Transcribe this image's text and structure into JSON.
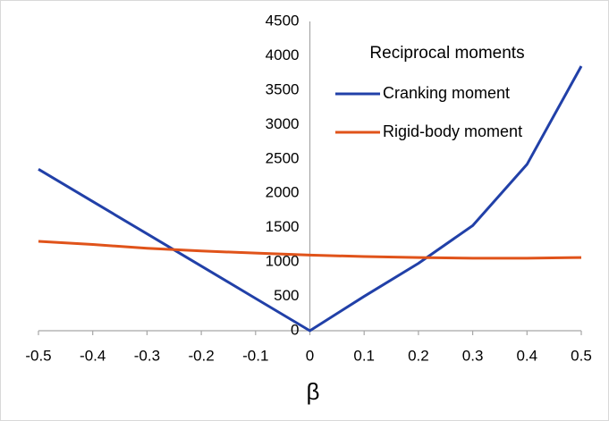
{
  "chart_data": {
    "type": "line",
    "legend_title": "Reciprocal moments",
    "xlabel": "β",
    "x": [
      -0.5,
      -0.4,
      -0.3,
      -0.2,
      -0.1,
      0,
      0.1,
      0.2,
      0.3,
      0.4,
      0.5
    ],
    "series": [
      {
        "name": "Cranking moment",
        "color": "#2140a8",
        "values": [
          2350,
          1880,
          1410,
          940,
          470,
          0,
          500,
          980,
          1530,
          2420,
          3850
        ]
      },
      {
        "name": "Rigid-body moment",
        "color": "#e0531a",
        "values": [
          1300,
          1255,
          1200,
          1160,
          1130,
          1100,
          1080,
          1065,
          1055,
          1055,
          1065
        ]
      }
    ],
    "xlim": [
      -0.5,
      0.5
    ],
    "xticks": [
      -0.5,
      -0.4,
      -0.3,
      -0.2,
      -0.1,
      0,
      0.1,
      0.2,
      0.3,
      0.4,
      0.5
    ],
    "ylim": [
      0,
      4500
    ],
    "yticks": [
      0,
      500,
      1000,
      1500,
      2000,
      2500,
      3000,
      3500,
      4000,
      4500
    ],
    "grid": false,
    "legend": "upper right"
  }
}
